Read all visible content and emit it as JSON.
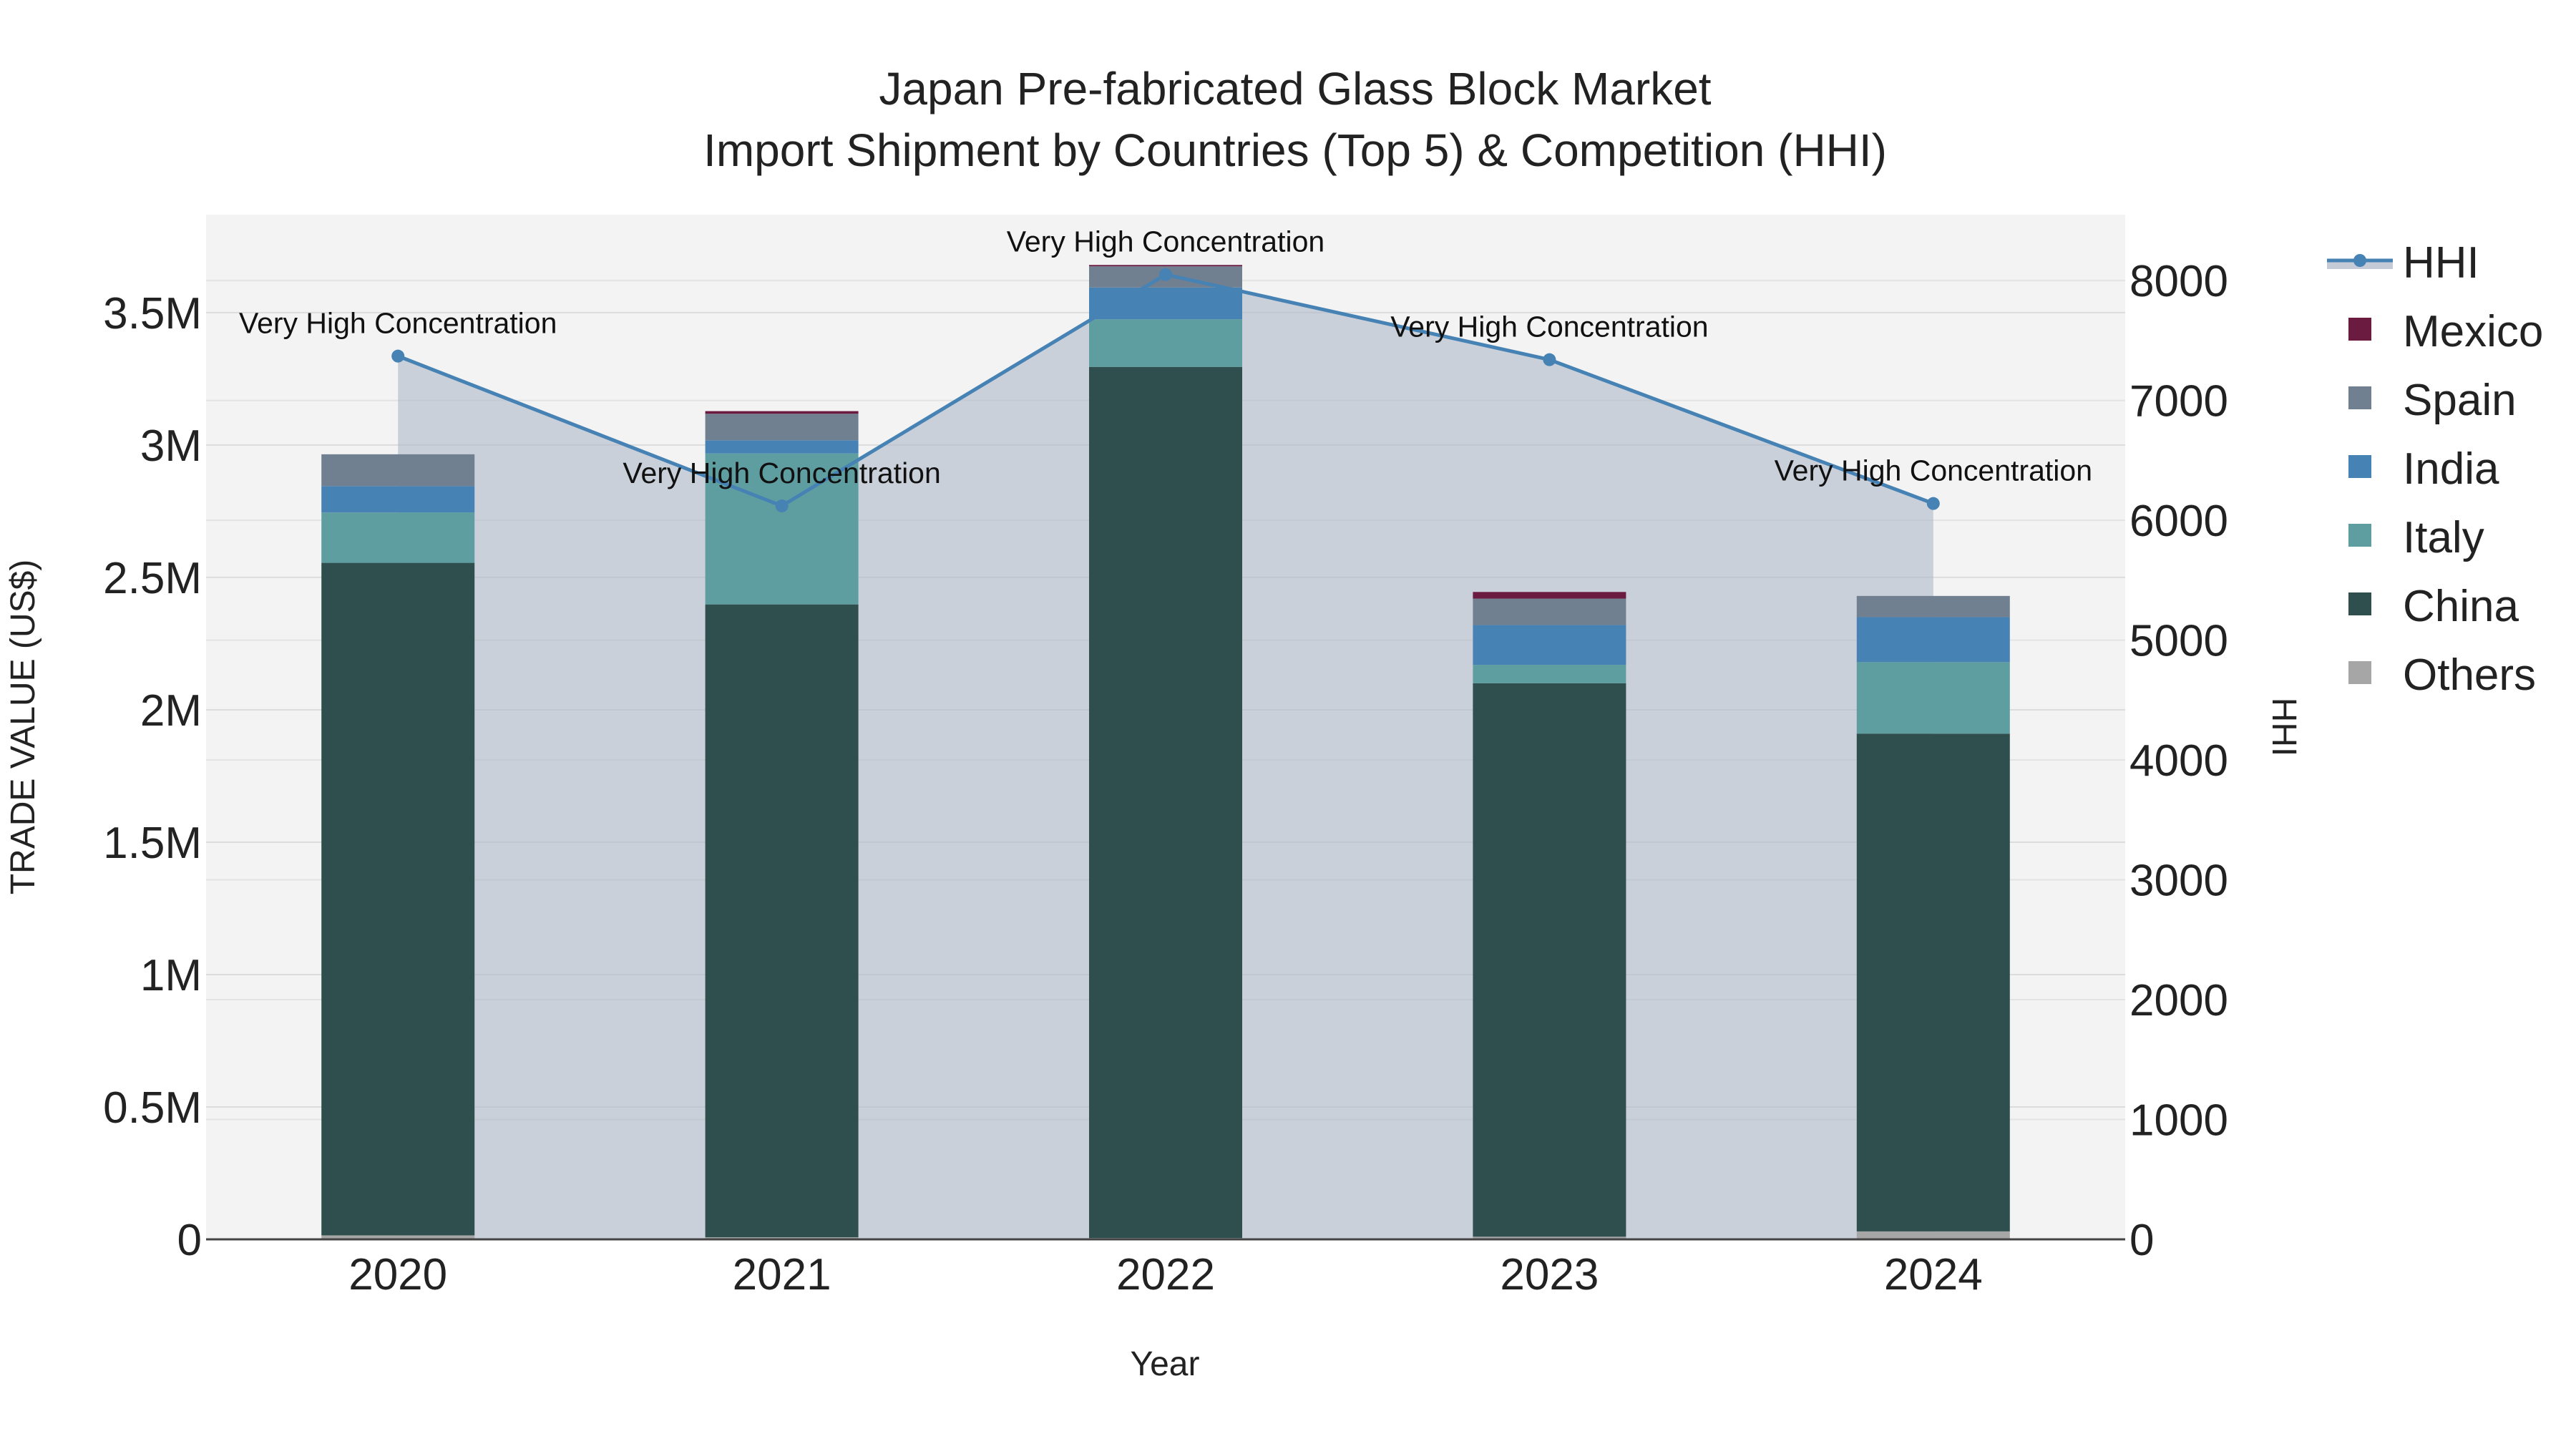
{
  "chart_data": {
    "type": "bar",
    "title_line1": "Japan Pre-fabricated Glass Block Market",
    "title_line2": "Import Shipment by Countries (Top 5) & Competition (HHI)",
    "xlabel": "Year",
    "ylabel": "TRADE VALUE (US$)",
    "y2label": "HHI",
    "categories": [
      "2020",
      "2021",
      "2022",
      "2023",
      "2024"
    ],
    "ylim": [
      0,
      3870000
    ],
    "yticks": [
      {
        "value": 0,
        "label": "0"
      },
      {
        "value": 500000,
        "label": "0.5M"
      },
      {
        "value": 1000000,
        "label": "1M"
      },
      {
        "value": 1500000,
        "label": "1.5M"
      },
      {
        "value": 2000000,
        "label": "2M"
      },
      {
        "value": 2500000,
        "label": "2.5M"
      },
      {
        "value": 3000000,
        "label": "3M"
      },
      {
        "value": 3500000,
        "label": "3.5M"
      }
    ],
    "y2lim": [
      0,
      8550
    ],
    "y2ticks": [
      {
        "value": 0,
        "label": "0"
      },
      {
        "value": 1000,
        "label": "1000"
      },
      {
        "value": 2000,
        "label": "2000"
      },
      {
        "value": 3000,
        "label": "3000"
      },
      {
        "value": 4000,
        "label": "4000"
      },
      {
        "value": 5000,
        "label": "5000"
      },
      {
        "value": 6000,
        "label": "6000"
      },
      {
        "value": 7000,
        "label": "7000"
      },
      {
        "value": 8000,
        "label": "8000"
      }
    ],
    "series": [
      {
        "name": "Others",
        "color": "#a6a6a6",
        "values": [
          15000,
          8000,
          5000,
          10000,
          30000
        ]
      },
      {
        "name": "China",
        "color": "#2f4f4f",
        "values": [
          2540000,
          2390000,
          3290000,
          2090000,
          1880000
        ]
      },
      {
        "name": "Italy",
        "color": "#5f9ea0",
        "values": [
          190000,
          570000,
          180000,
          70000,
          270000
        ]
      },
      {
        "name": "India",
        "color": "#4682b4",
        "values": [
          100000,
          50000,
          120000,
          150000,
          170000
        ]
      },
      {
        "name": "Spain",
        "color": "#708090",
        "values": [
          120000,
          100000,
          80000,
          100000,
          80000
        ]
      },
      {
        "name": "Mexico",
        "color": "#6b1b3f",
        "values": [
          0,
          10000,
          5000,
          25000,
          0
        ]
      }
    ],
    "hhi": {
      "name": "HHI",
      "color": "#4682b4",
      "values": [
        7370,
        6120,
        8050,
        7340,
        6140
      ],
      "labels": [
        "Very High Concentration",
        "Very High Concentration",
        "Very High Concentration",
        "Very High Concentration",
        "Very High Concentration"
      ]
    },
    "legend_order": [
      "HHI",
      "Mexico",
      "Spain",
      "India",
      "Italy",
      "China",
      "Others"
    ],
    "legend_position": "right"
  }
}
